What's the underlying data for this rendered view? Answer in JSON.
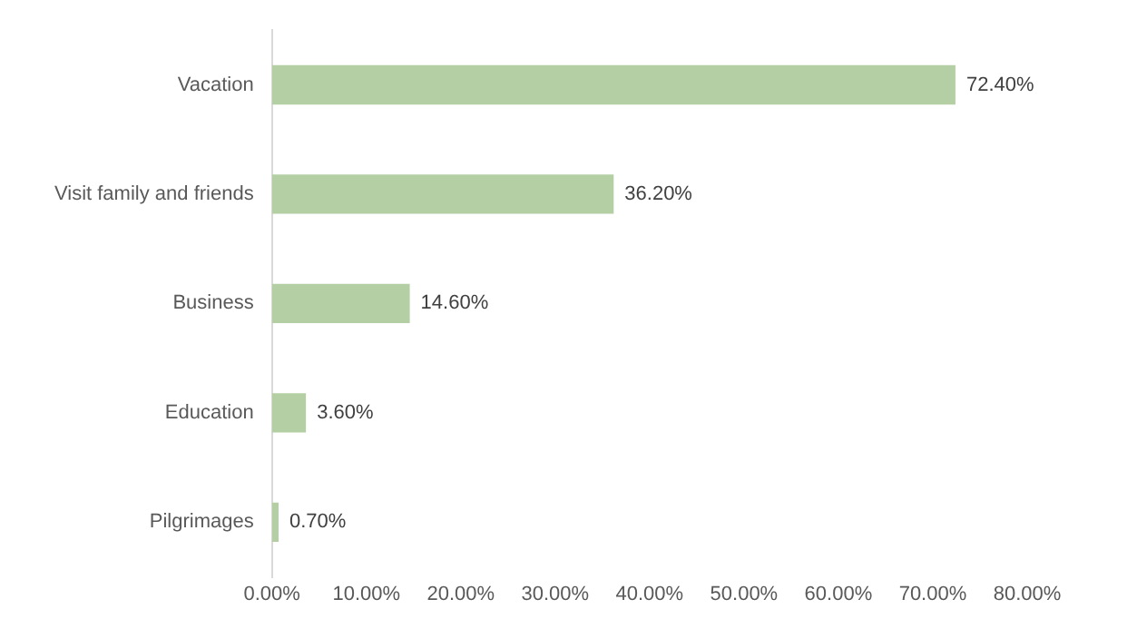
{
  "chart_data": {
    "type": "bar",
    "orientation": "horizontal",
    "categories": [
      "Vacation",
      "Visit family and friends",
      "Business",
      "Education",
      "Pilgrimages"
    ],
    "values": [
      72.4,
      36.2,
      14.6,
      3.6,
      0.7
    ],
    "value_labels": [
      "72.40%",
      "36.20%",
      "14.60%",
      "3.60%",
      "0.70%"
    ],
    "color": "#b4cfa4",
    "xlim": [
      0,
      80
    ],
    "xticks": [
      {
        "value": 0,
        "label": "0.00%"
      },
      {
        "value": 10,
        "label": "10.00%"
      },
      {
        "value": 20,
        "label": "20.00%"
      },
      {
        "value": 30,
        "label": "30.00%"
      },
      {
        "value": 40,
        "label": "40.00%"
      },
      {
        "value": 50,
        "label": "50.00%"
      },
      {
        "value": 60,
        "label": "60.00%"
      },
      {
        "value": 70,
        "label": "70.00%"
      },
      {
        "value": 80,
        "label": "80.00%"
      }
    ],
    "grid": false,
    "legend": false
  }
}
